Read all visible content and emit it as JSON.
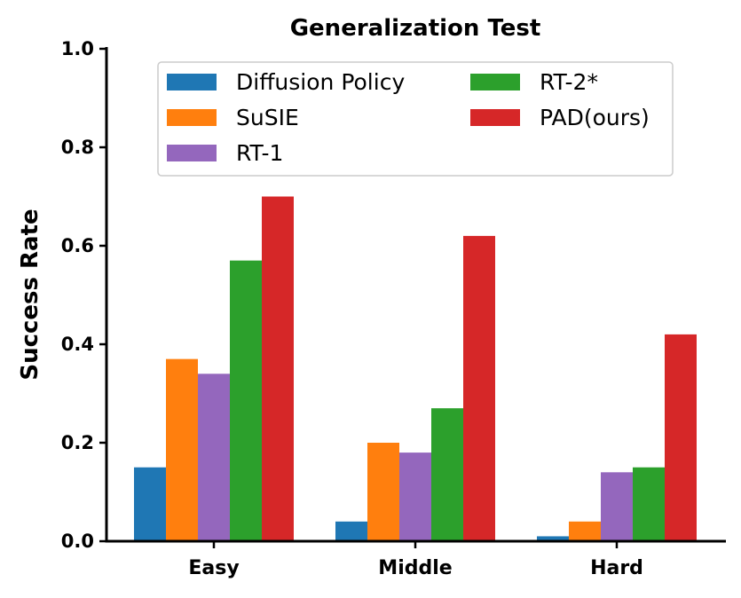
{
  "chart_data": {
    "type": "bar",
    "title": "Generalization Test",
    "xlabel": "",
    "ylabel": "Success Rate",
    "categories": [
      "Easy",
      "Middle",
      "Hard"
    ],
    "ylim": [
      0,
      1.0
    ],
    "yticks": [
      "0.0",
      "0.2",
      "0.4",
      "0.6",
      "0.8",
      "1.0"
    ],
    "grid": false,
    "legend_position": "top-center",
    "legend_columns": 2,
    "series": [
      {
        "name": "Diffusion Policy",
        "color": "#1f77b4",
        "values": [
          0.15,
          0.04,
          0.01
        ]
      },
      {
        "name": "SuSIE",
        "color": "#ff7f0e",
        "values": [
          0.37,
          0.2,
          0.04
        ]
      },
      {
        "name": "RT-1",
        "color": "#9467bd",
        "values": [
          0.34,
          0.18,
          0.14
        ]
      },
      {
        "name": "RT-2*",
        "color": "#2ca02c",
        "values": [
          0.57,
          0.27,
          0.15
        ]
      },
      {
        "name": "PAD(ours)",
        "color": "#d62728",
        "values": [
          0.7,
          0.62,
          0.42
        ]
      }
    ]
  }
}
